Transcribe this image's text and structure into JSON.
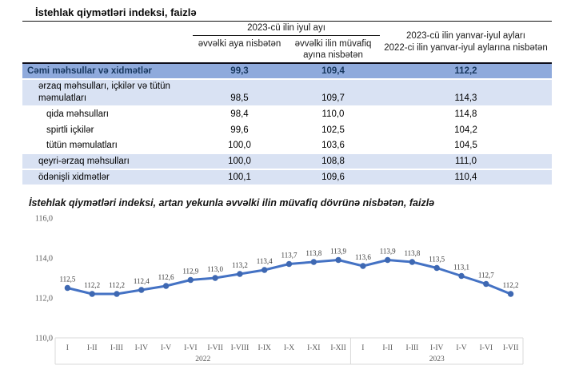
{
  "document": {
    "table_title": "İstehlak qiymətləri indeksi, faizlə",
    "chart_title": "İstehlak qiymətləri indeksi, artan yekunla əvvəlki ilin müvafiq dövrünə nisbətən, faizlə"
  },
  "table": {
    "group_header": "2023-cü ilin iyul ayı",
    "sub_headers": [
      "əvvəlki aya nisbətən",
      "əvvəlki ilin müvafiq ayına nisbətən"
    ],
    "period_header_line1": "2023-cü ilin yanvar-iyul ayları",
    "period_header_line2": "2022-ci ilin yanvar-iyul aylarına nisbətən",
    "rows": [
      {
        "label": "Cəmi məhsullar və xidmətlər",
        "values": [
          "99,3",
          "109,4",
          "112,2"
        ],
        "indent": 0,
        "shade": "dark",
        "emphasis": true
      },
      {
        "label": "ərzaq məhsulları, içkilər və tütün məmulatları",
        "values": [
          "98,5",
          "109,7",
          "114,3"
        ],
        "indent": 1,
        "shade": "light",
        "emphasis": false
      },
      {
        "label": "qida məhsulları",
        "values": [
          "98,4",
          "110,0",
          "114,8"
        ],
        "indent": 2,
        "shade": "none",
        "emphasis": false
      },
      {
        "label": "spirtli içkilər",
        "values": [
          "99,6",
          "102,5",
          "104,2"
        ],
        "indent": 2,
        "shade": "none",
        "emphasis": false
      },
      {
        "label": "tütün məmulatları",
        "values": [
          "100,0",
          "103,6",
          "104,5"
        ],
        "indent": 2,
        "shade": "none",
        "emphasis": false
      },
      {
        "label": "qeyri-ərzaq məhsulları",
        "values": [
          "100,0",
          "108,8",
          "111,0"
        ],
        "indent": 1,
        "shade": "light",
        "emphasis": false
      },
      {
        "label": "ödənişli xidmətlər",
        "values": [
          "100,1",
          "109,6",
          "110,4"
        ],
        "indent": 1,
        "shade": "light",
        "emphasis": false
      }
    ]
  },
  "chart_data": {
    "type": "line",
    "title": "İstehlak qiymətləri indeksi, artan yekunla əvvəlki ilin müvafiq dövrünə nisbətən, faizlə",
    "categories": [
      "I",
      "I-II",
      "I-III",
      "I-IV",
      "I-V",
      "I-VI",
      "I-VII",
      "I-VIII",
      "I-IX",
      "I-X",
      "I-XI",
      "I-XII",
      "I",
      "I-II",
      "I-III",
      "I-IV",
      "I-V",
      "I-VI",
      "I-VII"
    ],
    "year_groups": [
      {
        "label": "2022",
        "count": 12
      },
      {
        "label": "2023",
        "count": 7
      }
    ],
    "values": [
      112.5,
      112.2,
      112.2,
      112.4,
      112.6,
      112.9,
      113.0,
      113.2,
      113.4,
      113.7,
      113.8,
      113.9,
      113.6,
      113.9,
      113.8,
      113.5,
      113.1,
      112.7,
      112.2
    ],
    "point_labels": [
      "112,5",
      "112,2",
      "112,2",
      "112,4",
      "112,6",
      "112,9",
      "113,0",
      "113,2",
      "113,4",
      "113,7",
      "113,8",
      "113,9",
      "113,6",
      "113,9",
      "113,8",
      "113,5",
      "113,1",
      "112,7",
      "112,2"
    ],
    "ylim": [
      110.0,
      116.0
    ],
    "ytick_values": [
      110,
      112,
      114,
      116
    ],
    "ytick_labels": [
      "110,0",
      "112,0",
      "114,0",
      "116,0"
    ],
    "grid": false,
    "legend": "none",
    "line_color": "#4472C4",
    "marker_color": "#3E68B2",
    "axis_border_color": "#D9D9D9",
    "tick_text_color": "#595959",
    "point_label_color": "#3b3b3b"
  }
}
